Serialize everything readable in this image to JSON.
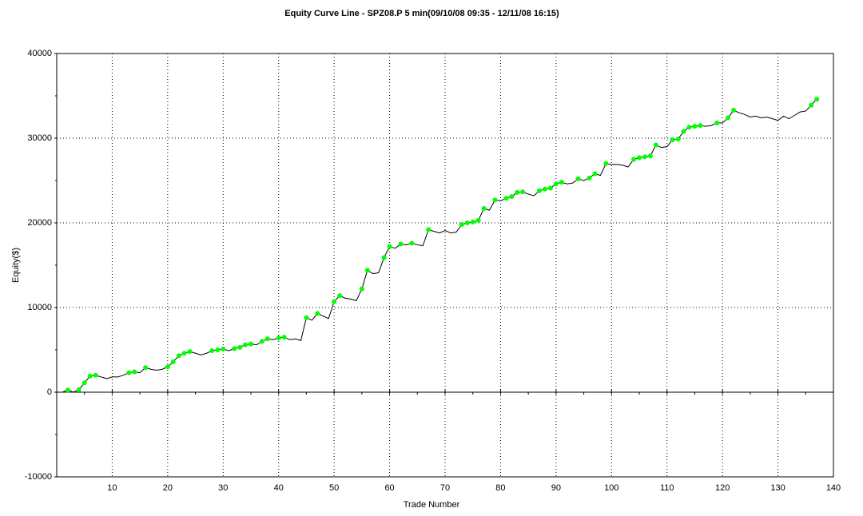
{
  "chart_data": {
    "type": "line",
    "title": "Equity Curve Line - SPZ08.P 5 min(09/10/08 09:35 - 12/11/08 16:15)",
    "xlabel": "Trade Number",
    "ylabel": "Equity($)",
    "x": [
      1,
      2,
      3,
      4,
      5,
      6,
      7,
      8,
      9,
      10,
      11,
      12,
      13,
      14,
      15,
      16,
      17,
      18,
      19,
      20,
      21,
      22,
      23,
      24,
      25,
      26,
      27,
      28,
      29,
      30,
      31,
      32,
      33,
      34,
      35,
      36,
      37,
      38,
      39,
      40,
      41,
      42,
      43,
      44,
      45,
      46,
      47,
      48,
      49,
      50,
      51,
      52,
      53,
      54,
      55,
      56,
      57,
      58,
      59,
      60,
      61,
      62,
      63,
      64,
      65,
      66,
      67,
      68,
      69,
      70,
      71,
      72,
      73,
      74,
      75,
      76,
      77,
      78,
      79,
      80,
      81,
      82,
      83,
      84,
      85,
      86,
      87,
      88,
      89,
      90,
      91,
      92,
      93,
      94,
      95,
      96,
      97,
      98,
      99,
      100,
      101,
      102,
      103,
      104,
      105,
      106,
      107,
      108,
      109,
      110,
      111,
      112,
      113,
      114,
      115,
      116,
      117,
      118,
      119,
      120,
      121,
      122,
      123,
      124,
      125,
      126,
      127,
      128,
      129,
      130,
      131,
      132,
      133,
      134,
      135,
      136,
      137
    ],
    "values": [
      0,
      250,
      0,
      300,
      1100,
      1900,
      2000,
      1800,
      1600,
      1800,
      1800,
      2000,
      2300,
      2400,
      2300,
      2900,
      2700,
      2600,
      2700,
      3000,
      3600,
      4300,
      4600,
      4800,
      4600,
      4400,
      4600,
      4900,
      5000,
      5100,
      4900,
      5150,
      5300,
      5600,
      5700,
      5600,
      6000,
      6300,
      6200,
      6400,
      6500,
      6200,
      6300,
      6100,
      8800,
      8500,
      9300,
      9000,
      8700,
      10700,
      11400,
      11100,
      11000,
      10800,
      12200,
      14400,
      14000,
      14100,
      15900,
      17200,
      17000,
      17500,
      17400,
      17600,
      17400,
      17300,
      19200,
      19000,
      18800,
      19100,
      18800,
      18900,
      19800,
      20000,
      20100,
      20300,
      21700,
      21500,
      22700,
      22600,
      22900,
      23100,
      23600,
      23650,
      23400,
      23200,
      23800,
      24000,
      24100,
      24600,
      24800,
      24600,
      24700,
      25200,
      25000,
      25300,
      25800,
      25600,
      27000,
      26900,
      26900,
      26800,
      26600,
      27500,
      27700,
      27800,
      27900,
      29200,
      28900,
      29000,
      29800,
      29900,
      30800,
      31300,
      31400,
      31500,
      31400,
      31500,
      31800,
      31800,
      32400,
      33300,
      33000,
      32800,
      32500,
      32600,
      32400,
      32500,
      32300,
      32100,
      32600,
      32300,
      32700,
      33100,
      33200,
      33900,
      34600
    ],
    "color": "#000000",
    "marker_color": "#00ff00",
    "xlim": [
      0,
      140
    ],
    "xticks": [
      10,
      20,
      30,
      40,
      50,
      60,
      70,
      80,
      90,
      100,
      110,
      120,
      130,
      140
    ],
    "ylim": [
      -10000,
      40000
    ],
    "yticks": [
      -10000,
      0,
      10000,
      20000,
      30000,
      40000
    ],
    "grid": true
  }
}
